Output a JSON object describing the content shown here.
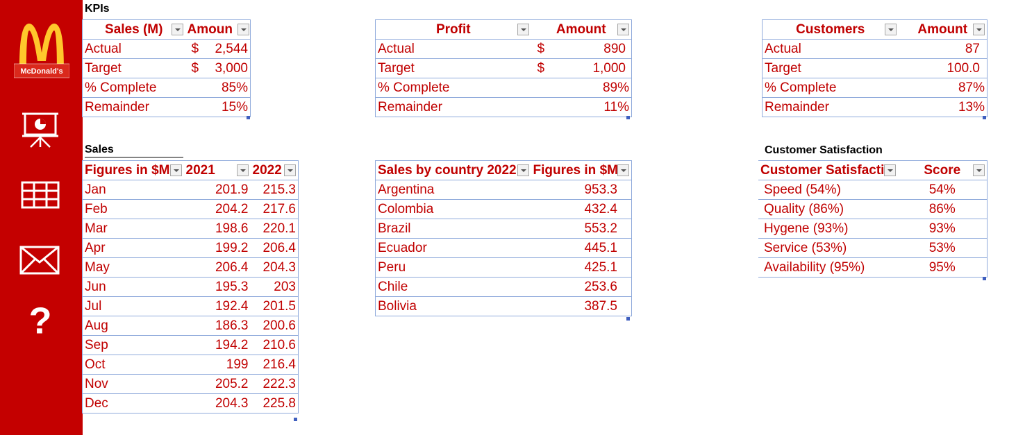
{
  "brand": {
    "name": "McDonald's",
    "sidebar_color": "#c40000",
    "text_color": "#c00000"
  },
  "sidebar": {
    "icons": [
      "mcdonalds-logo",
      "presentation-icon",
      "table-icon",
      "mail-icon",
      "help-icon"
    ]
  },
  "kpis": {
    "label": "KPIs",
    "sales": {
      "headers": [
        "Sales (M)",
        "Amoun"
      ],
      "rows": [
        [
          "Actual",
          "$",
          "2,544"
        ],
        [
          "Target",
          "$",
          "3,000"
        ],
        [
          "% Complete",
          "",
          "85%"
        ],
        [
          "Remainder",
          "",
          "15%"
        ]
      ]
    },
    "profit": {
      "headers": [
        "Profit",
        "Amount"
      ],
      "rows": [
        [
          "Actual",
          "$",
          "890"
        ],
        [
          "Target",
          "$",
          "1,000"
        ],
        [
          "% Complete",
          "",
          "89%"
        ],
        [
          "Remainder",
          "",
          "11%"
        ]
      ]
    },
    "customers": {
      "headers": [
        "Customers",
        "Amount"
      ],
      "rows": [
        [
          "Actual",
          "87"
        ],
        [
          "Target",
          "100.0"
        ],
        [
          "% Complete",
          "87%"
        ],
        [
          "Remainder",
          "13%"
        ]
      ]
    }
  },
  "sales": {
    "label": "Sales",
    "headers": [
      "Figures in $M",
      "2021",
      "2022"
    ],
    "rows": [
      [
        "Jan",
        "201.9",
        "215.3"
      ],
      [
        "Feb",
        "204.2",
        "217.6"
      ],
      [
        "Mar",
        "198.6",
        "220.1"
      ],
      [
        "Apr",
        "199.2",
        "206.4"
      ],
      [
        "May",
        "206.4",
        "204.3"
      ],
      [
        "Jun",
        "195.3",
        "203"
      ],
      [
        "Jul",
        "192.4",
        "201.5"
      ],
      [
        "Aug",
        "186.3",
        "200.6"
      ],
      [
        "Sep",
        "194.2",
        "210.6"
      ],
      [
        "Oct",
        "199",
        "216.4"
      ],
      [
        "Nov",
        "205.2",
        "222.3"
      ],
      [
        "Dec",
        "204.3",
        "225.8"
      ]
    ]
  },
  "country": {
    "headers": [
      "Sales by country 2022",
      "Figures in $M"
    ],
    "rows": [
      [
        "Argentina",
        "953.3"
      ],
      [
        "Colombia",
        "432.4"
      ],
      [
        "Brazil",
        "553.2"
      ],
      [
        "Ecuador",
        "445.1"
      ],
      [
        "Peru",
        "425.1"
      ],
      [
        "Chile",
        "253.6"
      ],
      [
        "Bolivia",
        "387.5"
      ]
    ]
  },
  "satisfaction": {
    "label": "Customer Satisfaction",
    "headers": [
      "Customer Satisfacti",
      "Score"
    ],
    "rows": [
      [
        "Speed (54%)",
        "54%"
      ],
      [
        "Quality (86%)",
        "86%"
      ],
      [
        "Hygene (93%)",
        "93%"
      ],
      [
        "Service (53%)",
        "53%"
      ],
      [
        "Availability (95%)",
        "95%"
      ]
    ]
  }
}
